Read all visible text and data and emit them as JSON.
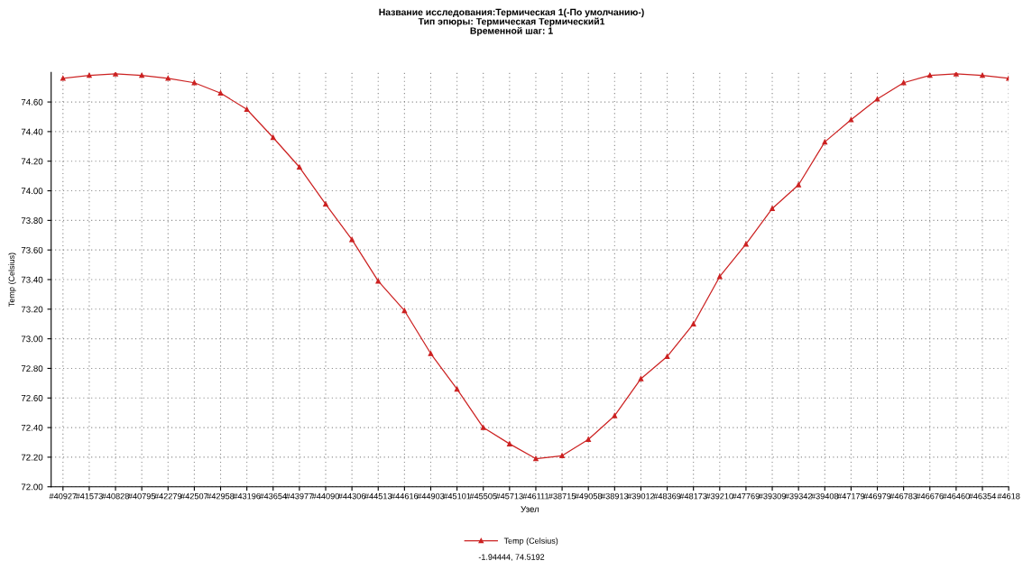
{
  "chart_data": {
    "type": "line",
    "title": "Название исследования:Термическая 1(-По умолчанию-)\nТип эпюры: Термическая Термический1\nВременной шаг: 1",
    "xlabel": "Узел",
    "ylabel": "Temp (Celsius)",
    "categories": [
      "#40927",
      "#41573",
      "#40828",
      "#40795",
      "#42279",
      "#42507",
      "#42958",
      "#43196",
      "#43654",
      "#43977",
      "#44090",
      "#44306",
      "#44513",
      "#44616",
      "#44903",
      "#45101",
      "#45505",
      "#45713",
      "#46111",
      "#38715",
      "#49058",
      "#38913",
      "#39012",
      "#48369",
      "#48173",
      "#39210",
      "#47769",
      "#39309",
      "#39342",
      "#39408",
      "#47179",
      "#46979",
      "#46783",
      "#46676",
      "#46460",
      "#46354",
      "#4618"
    ],
    "series": [
      {
        "name": "Temp (Celsius)",
        "color": "#cc2222",
        "values": [
          74.76,
          74.78,
          74.79,
          74.78,
          74.76,
          74.73,
          74.66,
          74.55,
          74.36,
          74.16,
          73.91,
          73.67,
          73.39,
          73.19,
          72.9,
          72.66,
          72.4,
          72.29,
          72.19,
          72.21,
          72.32,
          72.48,
          72.73,
          72.88,
          73.1,
          73.42,
          73.64,
          73.88,
          74.04,
          74.33,
          74.48,
          74.62,
          74.73,
          74.78,
          74.79,
          74.78,
          74.76
        ]
      }
    ],
    "ylim": [
      72.0,
      74.8
    ],
    "yticks": [
      {
        "value": 72.0,
        "label": "72.00"
      },
      {
        "value": 72.2,
        "label": "72.20"
      },
      {
        "value": 72.4,
        "label": "72.40"
      },
      {
        "value": 72.6,
        "label": "72.60"
      },
      {
        "value": 72.8,
        "label": "72.80"
      },
      {
        "value": 73.0,
        "label": "73.00"
      },
      {
        "value": 73.2,
        "label": "73.20"
      },
      {
        "value": 73.4,
        "label": "73.40"
      },
      {
        "value": 73.6,
        "label": "73.60"
      },
      {
        "value": 73.8,
        "label": "73.80"
      },
      {
        "value": 74.0,
        "label": "74.00"
      },
      {
        "value": 74.2,
        "label": "74.20"
      },
      {
        "value": 74.4,
        "label": "74.40"
      },
      {
        "value": 74.6,
        "label": "74.60"
      }
    ],
    "grid": true,
    "legend": "bottom",
    "marker": "triangle",
    "line_style": "solid",
    "annotations": [
      "-1.94444, 74.5192"
    ]
  }
}
